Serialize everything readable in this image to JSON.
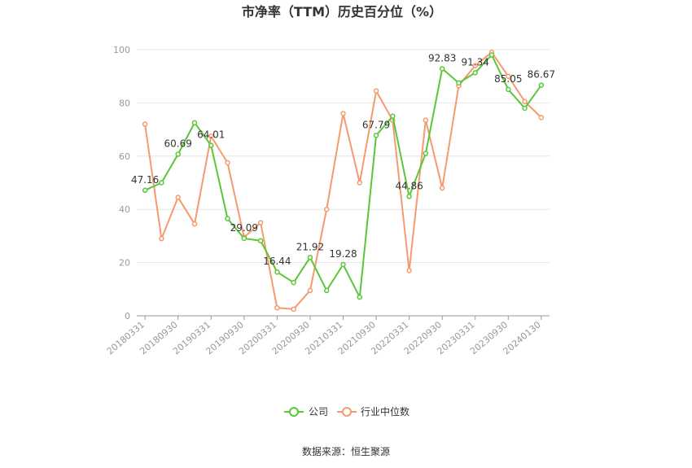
{
  "chart_data": {
    "type": "line",
    "title": "市净率（TTM）历史百分位（%）",
    "xlabel": "",
    "ylabel": "",
    "ylim": [
      0,
      100
    ],
    "yticks": [
      0,
      20,
      40,
      60,
      80,
      100
    ],
    "grid": true,
    "legend_position": "bottom",
    "x": [
      "20180331",
      "20180630",
      "20180930",
      "20181231",
      "20190331",
      "20190630",
      "20190930",
      "20191231",
      "20200331",
      "20200630",
      "20200930",
      "20201231",
      "20210331",
      "20210630",
      "20210930",
      "20211231",
      "20220331",
      "20220630",
      "20220930",
      "20221231",
      "20230331",
      "20230630",
      "20230930",
      "20231231",
      "20240130"
    ],
    "x_tick_labels": [
      "20180331",
      "20180930",
      "20190331",
      "20190930",
      "20200331",
      "20200930",
      "20210331",
      "20210930",
      "20220331",
      "20220930",
      "20230331",
      "20230930",
      "20240130"
    ],
    "x_tick_indices": [
      0,
      2,
      4,
      6,
      8,
      10,
      12,
      14,
      16,
      18,
      20,
      22,
      24
    ],
    "series": [
      {
        "name": "公司",
        "color": "#5ac737",
        "values": [
          47.16,
          50.0,
          60.69,
          72.5,
          64.01,
          36.5,
          29.09,
          28.2,
          16.44,
          12.5,
          21.92,
          9.5,
          19.28,
          7.0,
          67.79,
          75.0,
          44.86,
          61.0,
          92.83,
          87.5,
          91.34,
          98.0,
          85.05,
          78.0,
          86.67
        ],
        "data_labels": {
          "0": "47.16",
          "2": "60.69",
          "4": "64.01",
          "6": "29.09",
          "8": "16.44",
          "10": "21.92",
          "12": "19.28",
          "14": "67.79",
          "16": "44.86",
          "18": "92.83",
          "20": "91.34",
          "22": "85.05",
          "24": "86.67"
        }
      },
      {
        "name": "行业中位数",
        "color": "#f59a6f",
        "values": [
          72.0,
          29.0,
          44.5,
          34.5,
          67.5,
          57.5,
          29.5,
          35.0,
          3.0,
          2.5,
          9.5,
          40.0,
          76.0,
          50.0,
          84.5,
          73.5,
          17.0,
          73.5,
          48.0,
          86.5,
          94.0,
          99.0,
          90.0,
          80.5,
          74.5
        ]
      }
    ]
  },
  "source_text": "数据来源：恒生聚源"
}
